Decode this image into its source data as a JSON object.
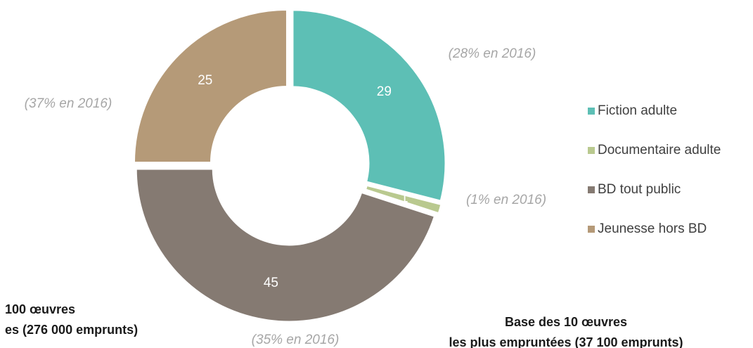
{
  "chart_data": {
    "type": "donut",
    "categories": [
      "Fiction adulte",
      "Documentaire adulte",
      "BD tout public",
      "Jeunesse hors BD"
    ],
    "values": [
      29,
      1,
      45,
      25
    ],
    "colors": [
      "#5dbfb5",
      "#b9c98f",
      "#857a72",
      "#b59a78"
    ],
    "annotations": [
      "(28% en 2016)",
      "(1% en 2016)",
      "(35% en 2016)",
      "(37% en 2016)"
    ],
    "footnotes": [
      {
        "lines": [
          "100 œuvres",
          "es (276 000 emprunts)"
        ]
      },
      {
        "lines": [
          "Base des 10 œuvres",
          "les plus empruntées (37 100 emprunts)"
        ]
      }
    ]
  }
}
